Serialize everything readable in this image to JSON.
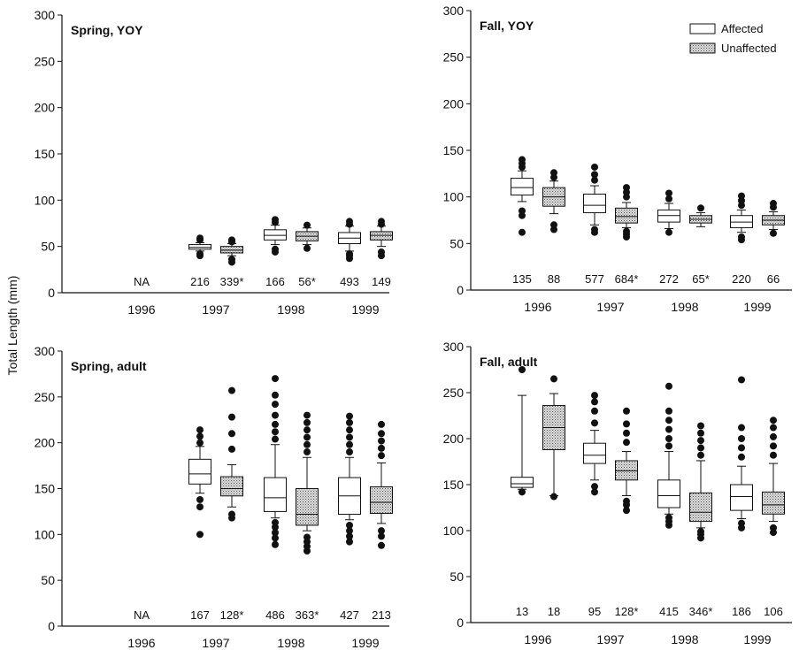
{
  "chart_data": {
    "type": "box",
    "ylabel": "Total Length (mm)",
    "ylim": [
      0,
      300
    ],
    "yticks": [
      0,
      50,
      100,
      150,
      200,
      250,
      300
    ],
    "categories": [
      "1996",
      "1997",
      "1998",
      "1999"
    ],
    "legend": {
      "placement": "top-right",
      "entries": [
        {
          "name": "Affected",
          "color": "#ffffff"
        },
        {
          "name": "Unaffected",
          "color": "#c8c8c8"
        }
      ]
    },
    "panels": [
      {
        "title": "Spring, YOY",
        "na_label": "NA",
        "groups": [
          {
            "year": "1996",
            "na": true
          },
          {
            "year": "1997",
            "affected": {
              "n": "216",
              "whislo": 45,
              "q1": 47,
              "med": 49,
              "q3": 52,
              "whishi": 54,
              "fliers_lo": [
                40,
                42
              ],
              "fliers_hi": [
                57,
                59
              ]
            },
            "unaffected": {
              "n": "339*",
              "whislo": 40,
              "q1": 43,
              "med": 46,
              "q3": 50,
              "whishi": 53,
              "fliers_lo": [
                33,
                36
              ],
              "fliers_hi": [
                55,
                57
              ]
            }
          },
          {
            "year": "1998",
            "affected": {
              "n": "166",
              "whislo": 52,
              "q1": 57,
              "med": 62,
              "q3": 68,
              "whishi": 73,
              "fliers_lo": [
                44,
                47
              ],
              "fliers_hi": [
                76,
                79
              ]
            },
            "unaffected": {
              "n": "56*",
              "whislo": 52,
              "q1": 56,
              "med": 61,
              "q3": 66,
              "whishi": 70,
              "fliers_lo": [
                48
              ],
              "fliers_hi": [
                73
              ]
            }
          },
          {
            "year": "1999",
            "affected": {
              "n": "493",
              "whislo": 45,
              "q1": 53,
              "med": 59,
              "q3": 65,
              "whishi": 72,
              "fliers_lo": [
                37,
                40,
                42
              ],
              "fliers_hi": [
                74,
                77
              ]
            },
            "unaffected": {
              "n": "149",
              "whislo": 50,
              "q1": 57,
              "med": 62,
              "q3": 66,
              "whishi": 72,
              "fliers_lo": [
                40,
                44
              ],
              "fliers_hi": [
                74,
                77
              ]
            }
          }
        ]
      },
      {
        "title": "Fall, YOY",
        "groups": [
          {
            "year": "1996",
            "affected": {
              "n": "135",
              "whislo": 95,
              "q1": 102,
              "med": 110,
              "q3": 120,
              "whishi": 128,
              "fliers_lo": [
                62,
                80,
                85
              ],
              "fliers_hi": [
                132,
                136,
                140
              ]
            },
            "unaffected": {
              "n": "88",
              "whislo": 82,
              "q1": 90,
              "med": 100,
              "q3": 110,
              "whishi": 117,
              "fliers_lo": [
                65,
                70
              ],
              "fliers_hi": [
                121,
                126
              ]
            }
          },
          {
            "year": "1997",
            "affected": {
              "n": "577",
              "whislo": 70,
              "q1": 83,
              "med": 91,
              "q3": 103,
              "whishi": 112,
              "fliers_lo": [
                62,
                65
              ],
              "fliers_hi": [
                118,
                124,
                132
              ]
            },
            "unaffected": {
              "n": "684*",
              "whislo": 67,
              "q1": 72,
              "med": 79,
              "q3": 88,
              "whishi": 94,
              "fliers_lo": [
                57,
                60,
                63
              ],
              "fliers_hi": [
                100,
                105,
                110
              ]
            }
          },
          {
            "year": "1998",
            "affected": {
              "n": "272",
              "whislo": 66,
              "q1": 73,
              "med": 80,
              "q3": 86,
              "whishi": 93,
              "fliers_lo": [
                62
              ],
              "fliers_hi": [
                98,
                104
              ]
            },
            "unaffected": {
              "n": "65*",
              "whislo": 68,
              "q1": 72,
              "med": 76,
              "q3": 80,
              "whishi": 83,
              "fliers_lo": [],
              "fliers_hi": [
                88
              ]
            }
          },
          {
            "year": "1999",
            "affected": {
              "n": "220",
              "whislo": 62,
              "q1": 67,
              "med": 73,
              "q3": 80,
              "whishi": 86,
              "fliers_lo": [
                54,
                57
              ],
              "fliers_hi": [
                91,
                96,
                101
              ]
            },
            "unaffected": {
              "n": "66",
              "whislo": 65,
              "q1": 70,
              "med": 75,
              "q3": 80,
              "whishi": 84,
              "fliers_lo": [
                61
              ],
              "fliers_hi": [
                89,
                93
              ]
            }
          }
        ]
      },
      {
        "title": "Spring, adult",
        "na_label": "NA",
        "groups": [
          {
            "year": "1996",
            "na": true
          },
          {
            "year": "1997",
            "affected": {
              "n": "167",
              "whislo": 145,
              "q1": 155,
              "med": 166,
              "q3": 182,
              "whishi": 196,
              "fliers_lo": [
                100,
                130,
                138
              ],
              "fliers_hi": [
                200,
                207,
                214
              ]
            },
            "unaffected": {
              "n": "128*",
              "whislo": 130,
              "q1": 142,
              "med": 150,
              "q3": 163,
              "whishi": 176,
              "fliers_lo": [
                118,
                122
              ],
              "fliers_hi": [
                193,
                210,
                228,
                257
              ]
            }
          },
          {
            "year": "1998",
            "affected": {
              "n": "486",
              "whislo": 118,
              "q1": 125,
              "med": 140,
              "q3": 162,
              "whishi": 198,
              "fliers_lo": [
                89,
                96,
                102,
                108,
                113
              ],
              "fliers_hi": [
                204,
                212,
                220,
                230,
                242,
                252,
                270
              ]
            },
            "unaffected": {
              "n": "363*",
              "whislo": 104,
              "q1": 110,
              "med": 122,
              "q3": 150,
              "whishi": 184,
              "fliers_lo": [
                82,
                87,
                92,
                97
              ],
              "fliers_hi": [
                190,
                198,
                206,
                214,
                222,
                230
              ]
            }
          },
          {
            "year": "1999",
            "affected": {
              "n": "427",
              "whislo": 116,
              "q1": 122,
              "med": 142,
              "q3": 162,
              "whishi": 184,
              "fliers_lo": [
                92,
                98,
                104,
                110
              ],
              "fliers_hi": [
                190,
                198,
                206,
                214,
                222,
                229
              ]
            },
            "unaffected": {
              "n": "213",
              "whislo": 112,
              "q1": 123,
              "med": 135,
              "q3": 152,
              "whishi": 178,
              "fliers_lo": [
                88,
                98,
                104
              ],
              "fliers_hi": [
                186,
                194,
                202,
                210,
                220
              ]
            }
          }
        ]
      },
      {
        "title": "Fall, adult",
        "groups": [
          {
            "year": "1996",
            "affected": {
              "n": "13",
              "whislo": 145,
              "q1": 147,
              "med": 151,
              "q3": 158,
              "whishi": 247,
              "fliers_lo": [
                142
              ],
              "fliers_hi": [
                275
              ]
            },
            "unaffected": {
              "n": "18",
              "whislo": 138,
              "q1": 188,
              "med": 212,
              "q3": 236,
              "whishi": 249,
              "fliers_lo": [
                137
              ],
              "fliers_hi": [
                265
              ]
            }
          },
          {
            "year": "1997",
            "affected": {
              "n": "95",
              "whislo": 155,
              "q1": 173,
              "med": 182,
              "q3": 195,
              "whishi": 209,
              "fliers_lo": [
                142,
                148
              ],
              "fliers_hi": [
                217,
                230,
                240,
                247
              ]
            },
            "unaffected": {
              "n": "128*",
              "whislo": 138,
              "q1": 155,
              "med": 165,
              "q3": 176,
              "whishi": 186,
              "fliers_lo": [
                122,
                128,
                132
              ],
              "fliers_hi": [
                196,
                206,
                216,
                230
              ]
            }
          },
          {
            "year": "1998",
            "affected": {
              "n": "415",
              "whislo": 118,
              "q1": 125,
              "med": 138,
              "q3": 155,
              "whishi": 186,
              "fliers_lo": [
                106,
                110,
                114
              ],
              "fliers_hi": [
                192,
                200,
                210,
                220,
                230,
                257
              ]
            },
            "unaffected": {
              "n": "346*",
              "whislo": 103,
              "q1": 110,
              "med": 120,
              "q3": 141,
              "whishi": 176,
              "fliers_lo": [
                92,
                96,
                99
              ],
              "fliers_hi": [
                182,
                190,
                198,
                206,
                214
              ]
            }
          },
          {
            "year": "1999",
            "affected": {
              "n": "186",
              "whislo": 113,
              "q1": 122,
              "med": 137,
              "q3": 150,
              "whishi": 170,
              "fliers_lo": [
                103,
                108
              ],
              "fliers_hi": [
                180,
                190,
                200,
                212,
                264
              ]
            },
            "unaffected": {
              "n": "106",
              "whislo": 110,
              "q1": 118,
              "med": 128,
              "q3": 142,
              "whishi": 173,
              "fliers_lo": [
                98,
                103
              ],
              "fliers_hi": [
                182,
                192,
                202,
                212,
                220
              ]
            }
          }
        ]
      }
    ]
  }
}
